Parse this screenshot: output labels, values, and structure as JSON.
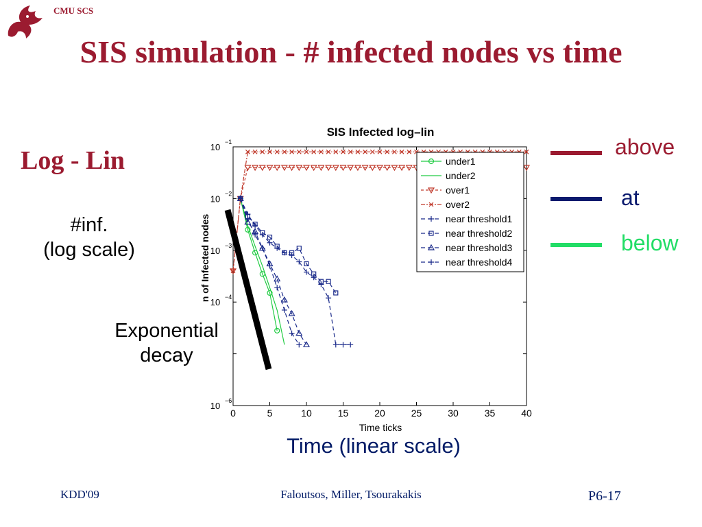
{
  "slide": {
    "header_org": "CMU SCS",
    "title": "SIS simulation - # infected nodes vs time",
    "mode_label": "Log - Lin",
    "y_annotation": [
      "#inf.",
      "(log scale)"
    ],
    "decay_annotation": [
      "Exponential",
      "decay"
    ],
    "x_annotation": "Time (linear scale)",
    "footer_left": "KDD'09",
    "footer_center": "Faloutsos, Miller, Tsourakakis",
    "footer_right": "P6-17",
    "colors": {
      "title": "#9b1b30",
      "footer": "#001a66"
    }
  },
  "key": [
    {
      "label": "above",
      "color": "#9b1b30"
    },
    {
      "label": "at",
      "color": "#0a1a6e"
    },
    {
      "label": "below",
      "color": "#22dd66"
    }
  ],
  "chart_data": {
    "type": "line",
    "title": "SIS Infected log–lin",
    "xlabel": "Time ticks",
    "ylabel": "n of Infected nodes",
    "xlim": [
      0,
      40
    ],
    "ylim": [
      1e-06,
      0.1
    ],
    "y_scale": "log",
    "xticks": [
      0,
      5,
      10,
      15,
      20,
      25,
      30,
      35,
      40
    ],
    "yticks": [
      {
        "value": 1e-06,
        "base": "10",
        "exp": "−6"
      },
      {
        "value": 1e-05,
        "base": "",
        "exp": ""
      },
      {
        "value": 0.0001,
        "base": "10",
        "exp": "−4"
      },
      {
        "value": 0.001,
        "base": "10",
        "exp": "−3"
      },
      {
        "value": 0.01,
        "base": "10",
        "exp": "−2"
      },
      {
        "value": 0.1,
        "base": "10",
        "exp": "−1"
      }
    ],
    "legend_position": "top-right",
    "series": [
      {
        "name": "under1",
        "color": "#22cc44",
        "dash": "",
        "marker": "o",
        "x": [
          1,
          2,
          3,
          4,
          5,
          6
        ],
        "y": [
          0.01,
          0.0025,
          0.0009,
          0.00035,
          0.00015,
          2.8e-05
        ]
      },
      {
        "name": "under2",
        "color": "#22cc44",
        "dash": "",
        "marker": "none",
        "x": [
          1,
          2,
          3,
          4,
          5,
          6,
          7
        ],
        "y": [
          0.01,
          0.003,
          0.0012,
          0.0005,
          0.00019,
          7e-05,
          1.5e-05
        ]
      },
      {
        "name": "over1",
        "color": "#c0392b",
        "dash": "4,3",
        "marker": "v",
        "x": [
          0,
          1,
          2,
          3,
          4,
          5,
          6,
          7,
          8,
          9,
          10,
          11,
          12,
          13,
          14,
          15,
          16,
          17,
          18,
          19,
          20,
          21,
          22,
          23,
          24,
          25,
          26,
          27,
          28,
          29,
          30,
          31,
          32,
          33,
          34,
          35,
          36,
          37,
          38,
          39,
          40
        ],
        "y": [
          0.0004,
          0.01,
          0.04,
          0.04,
          0.04,
          0.04,
          0.04,
          0.04,
          0.04,
          0.04,
          0.04,
          0.04,
          0.04,
          0.04,
          0.04,
          0.04,
          0.04,
          0.04,
          0.04,
          0.04,
          0.04,
          0.04,
          0.04,
          0.04,
          0.04,
          0.04,
          0.04,
          0.04,
          0.04,
          0.04,
          0.04,
          0.04,
          0.04,
          0.04,
          0.04,
          0.04,
          0.04,
          0.04,
          0.04,
          0.04,
          0.04
        ]
      },
      {
        "name": "over2",
        "color": "#c0392b",
        "dash": "6,2,2,2",
        "marker": "x",
        "x": [
          0,
          1,
          2,
          3,
          4,
          5,
          6,
          7,
          8,
          9,
          10,
          11,
          12,
          13,
          14,
          15,
          16,
          17,
          18,
          19,
          20,
          21,
          22,
          23,
          24,
          25,
          26,
          27,
          28,
          29,
          30,
          31,
          32,
          33,
          34,
          35,
          36,
          37,
          38,
          39,
          40
        ],
        "y": [
          0.0004,
          0.01,
          0.08,
          0.08,
          0.08,
          0.08,
          0.08,
          0.08,
          0.08,
          0.08,
          0.08,
          0.08,
          0.08,
          0.08,
          0.08,
          0.08,
          0.08,
          0.08,
          0.08,
          0.08,
          0.08,
          0.08,
          0.08,
          0.08,
          0.08,
          0.08,
          0.08,
          0.08,
          0.08,
          0.08,
          0.08,
          0.08,
          0.08,
          0.08,
          0.08,
          0.08,
          0.08,
          0.08,
          0.08,
          0.08,
          0.08
        ]
      },
      {
        "name": "near threshold1",
        "color": "#1a2a8a",
        "dash": "6,4",
        "marker": "+",
        "x": [
          1,
          2,
          3,
          4,
          5,
          6,
          7,
          8,
          9
        ],
        "y": [
          0.01,
          0.004,
          0.002,
          0.0011,
          0.0005,
          0.00019,
          7e-05,
          2.5e-05,
          1.5e-05
        ]
      },
      {
        "name": "near threshold2",
        "color": "#1a2a8a",
        "dash": "6,4",
        "marker": "s",
        "x": [
          1,
          2,
          3,
          4,
          5,
          6,
          7,
          8,
          9,
          10,
          11,
          12,
          13,
          14
        ],
        "y": [
          0.01,
          0.0045,
          0.0032,
          0.0022,
          0.0018,
          0.0012,
          0.0009,
          0.0009,
          0.0011,
          0.00055,
          0.00035,
          0.00025,
          0.00025,
          0.00015
        ]
      },
      {
        "name": "near threshold3",
        "color": "#1a2a8a",
        "dash": "6,4",
        "marker": "^",
        "x": [
          1,
          2,
          3,
          4,
          5,
          6,
          7,
          8,
          9,
          10
        ],
        "y": [
          0.01,
          0.0035,
          0.0023,
          0.0011,
          0.00055,
          0.00028,
          0.00011,
          6e-05,
          2.5e-05,
          1.5e-05
        ]
      },
      {
        "name": "near threshold4",
        "color": "#1a2a8a",
        "dash": "6,4",
        "marker": "+",
        "x": [
          1,
          2,
          3,
          4,
          5,
          6,
          7,
          8,
          9,
          10,
          11,
          12,
          13,
          14,
          15,
          16
        ],
        "y": [
          0.01,
          0.005,
          0.003,
          0.002,
          0.0014,
          0.0011,
          0.0009,
          0.0008,
          0.0006,
          0.00038,
          0.0003,
          0.00022,
          0.00012,
          1.5e-05,
          1.5e-05,
          1.5e-05
        ]
      }
    ]
  }
}
